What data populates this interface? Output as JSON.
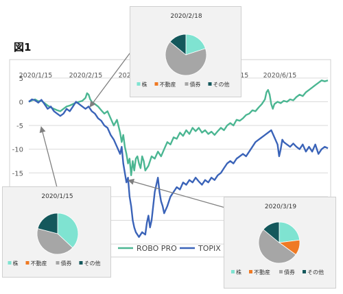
{
  "figure_label": "図1",
  "colors": {
    "robo_pro": "#4bb692",
    "topix": "#3a63b8",
    "pie_stock": "#7fe3d1",
    "pie_realestate": "#ef7a24",
    "pie_bond": "#a6a6a6",
    "pie_other": "#14585c",
    "grid": "#d9d9d9",
    "arrow": "#7f7f7f"
  },
  "chart_data": [
    {
      "type": "line",
      "title": "",
      "x_tick_labels": [
        "2020/1/15",
        "2020/2/15",
        "2020/3/15",
        "2020/4/15",
        "2020/5/15",
        "2020/6/15"
      ],
      "y_ticks": [
        5,
        0,
        -5,
        -10,
        -15,
        -20,
        -25,
        -30
      ],
      "ylim": [
        -32,
        7
      ],
      "grid": "horizontal",
      "legend_position": "bottom-center",
      "x_range_days": [
        0,
        190
      ],
      "series": [
        {
          "name": "ROBO PRO",
          "color": "#4bb692",
          "points": [
            [
              0,
              0
            ],
            [
              2,
              0.3
            ],
            [
              4,
              0.5
            ],
            [
              6,
              0.1
            ],
            [
              8,
              0.2
            ],
            [
              10,
              -0.3
            ],
            [
              12,
              -0.8
            ],
            [
              14,
              -1.2
            ],
            [
              16,
              -1.5
            ],
            [
              18,
              -1.8
            ],
            [
              20,
              -2.0
            ],
            [
              22,
              -1.5
            ],
            [
              24,
              -1.0
            ],
            [
              26,
              -0.8
            ],
            [
              28,
              -0.5
            ],
            [
              30,
              -0.2
            ],
            [
              32,
              0
            ],
            [
              34,
              0.2
            ],
            [
              36,
              0.8
            ],
            [
              37,
              1.8
            ],
            [
              38,
              1.5
            ],
            [
              39,
              0.5
            ],
            [
              40,
              0
            ],
            [
              42,
              -0.5
            ],
            [
              44,
              -1.0
            ],
            [
              46,
              -1.8
            ],
            [
              48,
              -2.5
            ],
            [
              50,
              -2.0
            ],
            [
              52,
              -3.5
            ],
            [
              54,
              -5.0
            ],
            [
              56,
              -3.8
            ],
            [
              58,
              -6.5
            ],
            [
              59,
              -8.5
            ],
            [
              60,
              -7.0
            ],
            [
              61,
              -9.5
            ],
            [
              62,
              -11.0
            ],
            [
              63,
              -13.0
            ],
            [
              64,
              -12.0
            ],
            [
              65,
              -15.5
            ],
            [
              66,
              -12.5
            ],
            [
              67,
              -14.5
            ],
            [
              68,
              -12.0
            ],
            [
              69,
              -11.5
            ],
            [
              70,
              -13.0
            ],
            [
              71,
              -14.0
            ],
            [
              72,
              -11.5
            ],
            [
              73,
              -12.5
            ],
            [
              74,
              -14.5
            ],
            [
              76,
              -13.5
            ],
            [
              78,
              -11.5
            ],
            [
              80,
              -12.0
            ],
            [
              82,
              -10.5
            ],
            [
              84,
              -11.5
            ],
            [
              86,
              -10.0
            ],
            [
              88,
              -8.5
            ],
            [
              90,
              -9.0
            ],
            [
              92,
              -7.5
            ],
            [
              94,
              -7.8
            ],
            [
              96,
              -6.5
            ],
            [
              98,
              -7.2
            ],
            [
              100,
              -6.0
            ],
            [
              102,
              -6.8
            ],
            [
              104,
              -5.5
            ],
            [
              106,
              -6.2
            ],
            [
              108,
              -5.5
            ],
            [
              110,
              -6.5
            ],
            [
              112,
              -6.0
            ],
            [
              114,
              -6.8
            ],
            [
              116,
              -6.3
            ],
            [
              118,
              -7.0
            ],
            [
              120,
              -6.2
            ],
            [
              122,
              -5.5
            ],
            [
              124,
              -6.0
            ],
            [
              126,
              -5.0
            ],
            [
              128,
              -4.5
            ],
            [
              130,
              -5.0
            ],
            [
              132,
              -3.8
            ],
            [
              134,
              -4.0
            ],
            [
              136,
              -3.5
            ],
            [
              138,
              -2.8
            ],
            [
              140,
              -2.5
            ],
            [
              142,
              -1.8
            ],
            [
              144,
              -2.0
            ],
            [
              146,
              -1.2
            ],
            [
              148,
              -0.5
            ],
            [
              150,
              0.5
            ],
            [
              151,
              2.0
            ],
            [
              152,
              2.5
            ],
            [
              153,
              1.5
            ],
            [
              154,
              -0.5
            ],
            [
              155,
              -1.5
            ],
            [
              156,
              -0.5
            ],
            [
              158,
              0
            ],
            [
              160,
              -0.3
            ],
            [
              162,
              0.2
            ],
            [
              164,
              0
            ],
            [
              166,
              0.5
            ],
            [
              168,
              0.3
            ],
            [
              170,
              1.0
            ],
            [
              172,
              1.5
            ],
            [
              174,
              1.2
            ],
            [
              176,
              2.0
            ],
            [
              178,
              2.5
            ],
            [
              180,
              3.0
            ],
            [
              182,
              3.5
            ],
            [
              184,
              4.0
            ],
            [
              186,
              4.5
            ],
            [
              188,
              4.3
            ],
            [
              190,
              4.5
            ]
          ]
        },
        {
          "name": "TOPIX",
          "color": "#3a63b8",
          "points": [
            [
              0,
              0
            ],
            [
              2,
              0.5
            ],
            [
              4,
              0.3
            ],
            [
              6,
              -0.2
            ],
            [
              8,
              0.4
            ],
            [
              10,
              -0.5
            ],
            [
              12,
              -1.5
            ],
            [
              14,
              -1.0
            ],
            [
              16,
              -2.0
            ],
            [
              18,
              -2.5
            ],
            [
              20,
              -3.0
            ],
            [
              22,
              -2.5
            ],
            [
              24,
              -1.5
            ],
            [
              26,
              -2.0
            ],
            [
              28,
              -1.0
            ],
            [
              30,
              0
            ],
            [
              32,
              -0.5
            ],
            [
              34,
              -1.0
            ],
            [
              36,
              -1.5
            ],
            [
              38,
              -1.0
            ],
            [
              40,
              -2.0
            ],
            [
              42,
              -2.5
            ],
            [
              44,
              -3.5
            ],
            [
              46,
              -4.0
            ],
            [
              48,
              -5.0
            ],
            [
              50,
              -5.5
            ],
            [
              52,
              -7.0
            ],
            [
              54,
              -8.0
            ],
            [
              56,
              -9.5
            ],
            [
              58,
              -11.0
            ],
            [
              59,
              -9.5
            ],
            [
              60,
              -13.0
            ],
            [
              61,
              -15.0
            ],
            [
              62,
              -17.0
            ],
            [
              63,
              -16.0
            ],
            [
              64,
              -20.0
            ],
            [
              65,
              -22.0
            ],
            [
              66,
              -25.0
            ],
            [
              67,
              -26.5
            ],
            [
              68,
              -27.5
            ],
            [
              70,
              -28.5
            ],
            [
              72,
              -27.5
            ],
            [
              74,
              -28.0
            ],
            [
              75,
              -25.5
            ],
            [
              76,
              -24.0
            ],
            [
              77,
              -26.5
            ],
            [
              78,
              -25.0
            ],
            [
              79,
              -22.0
            ],
            [
              80,
              -19.0
            ],
            [
              81,
              -17.5
            ],
            [
              82,
              -16.0
            ],
            [
              83,
              -19.0
            ],
            [
              84,
              -21.0
            ],
            [
              85,
              -22.0
            ],
            [
              86,
              -23.5
            ],
            [
              88,
              -22.0
            ],
            [
              90,
              -20.0
            ],
            [
              92,
              -19.0
            ],
            [
              94,
              -18.0
            ],
            [
              96,
              -18.5
            ],
            [
              98,
              -17.0
            ],
            [
              100,
              -17.5
            ],
            [
              102,
              -16.5
            ],
            [
              104,
              -17.0
            ],
            [
              106,
              -16.0
            ],
            [
              108,
              -16.8
            ],
            [
              110,
              -17.5
            ],
            [
              112,
              -16.5
            ],
            [
              114,
              -17.0
            ],
            [
              116,
              -16.0
            ],
            [
              118,
              -16.5
            ],
            [
              120,
              -15.5
            ],
            [
              122,
              -15.0
            ],
            [
              124,
              -14.0
            ],
            [
              126,
              -13.0
            ],
            [
              128,
              -12.5
            ],
            [
              130,
              -13.0
            ],
            [
              132,
              -12.0
            ],
            [
              134,
              -11.5
            ],
            [
              136,
              -11.0
            ],
            [
              138,
              -11.5
            ],
            [
              140,
              -10.5
            ],
            [
              142,
              -9.5
            ],
            [
              144,
              -8.5
            ],
            [
              146,
              -8.0
            ],
            [
              148,
              -7.5
            ],
            [
              150,
              -7.0
            ],
            [
              152,
              -6.5
            ],
            [
              154,
              -6.0
            ],
            [
              156,
              -7.5
            ],
            [
              158,
              -9.0
            ],
            [
              159,
              -11.5
            ],
            [
              160,
              -10.0
            ],
            [
              161,
              -8.0
            ],
            [
              162,
              -8.5
            ],
            [
              164,
              -9.0
            ],
            [
              166,
              -9.5
            ],
            [
              168,
              -8.8
            ],
            [
              170,
              -9.5
            ],
            [
              172,
              -10.0
            ],
            [
              174,
              -9.0
            ],
            [
              176,
              -10.5
            ],
            [
              178,
              -9.5
            ],
            [
              180,
              -10.5
            ],
            [
              182,
              -9.0
            ],
            [
              184,
              -11.0
            ],
            [
              186,
              -10.0
            ],
            [
              188,
              -9.5
            ],
            [
              190,
              -9.8
            ]
          ]
        }
      ]
    },
    {
      "type": "pie",
      "title": "2020/2/18",
      "categories": [
        "株",
        "不動産",
        "債券",
        "その他"
      ],
      "values": [
        20,
        0,
        66,
        14
      ],
      "legend_position": "bottom"
    },
    {
      "type": "pie",
      "title": "2020/1/15",
      "categories": [
        "株",
        "不動産",
        "債券",
        "その他"
      ],
      "values": [
        37,
        0,
        42,
        21
      ],
      "legend_position": "bottom"
    },
    {
      "type": "pie",
      "title": "2020/3/19",
      "categories": [
        "株",
        "不動産",
        "債券",
        "その他"
      ],
      "values": [
        23,
        12,
        51,
        14
      ],
      "legend_position": "bottom"
    }
  ]
}
